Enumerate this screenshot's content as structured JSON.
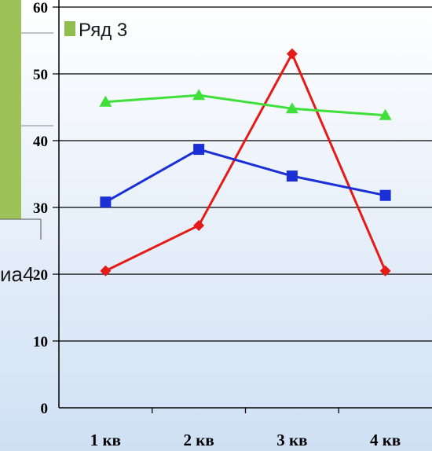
{
  "chart_data": {
    "type": "line",
    "categories": [
      "1 кв",
      "2 кв",
      "3 кв",
      "4 кв"
    ],
    "ylim": [
      0,
      60
    ],
    "yticks": [
      0,
      10,
      20,
      30,
      40,
      50,
      60
    ],
    "grid": true,
    "series": [
      {
        "key": "s1",
        "values": [
          20.5,
          27.3,
          53,
          20.5
        ],
        "color": "#e41b17",
        "marker": "diamond"
      },
      {
        "key": "s2",
        "values": [
          30.8,
          38.7,
          34.7,
          31.8
        ],
        "color": "#1a2fd6",
        "marker": "square"
      },
      {
        "name": "Ряд 3",
        "key": "s3",
        "values": [
          45.8,
          46.8,
          44.8,
          43.8
        ],
        "color": "#3fe03a",
        "marker": "triangle"
      }
    ],
    "legend": {
      "placement": "top-left",
      "label": "Ряд 3",
      "color": "#8fbe4f"
    }
  },
  "fragments": {
    "left_text": "иа4",
    "left_panel_color": "#9dc257"
  },
  "colors": {
    "plot_bg_top": "#ffffff",
    "plot_bg_bottom": "#cfe0f4",
    "grid": "#000000"
  }
}
